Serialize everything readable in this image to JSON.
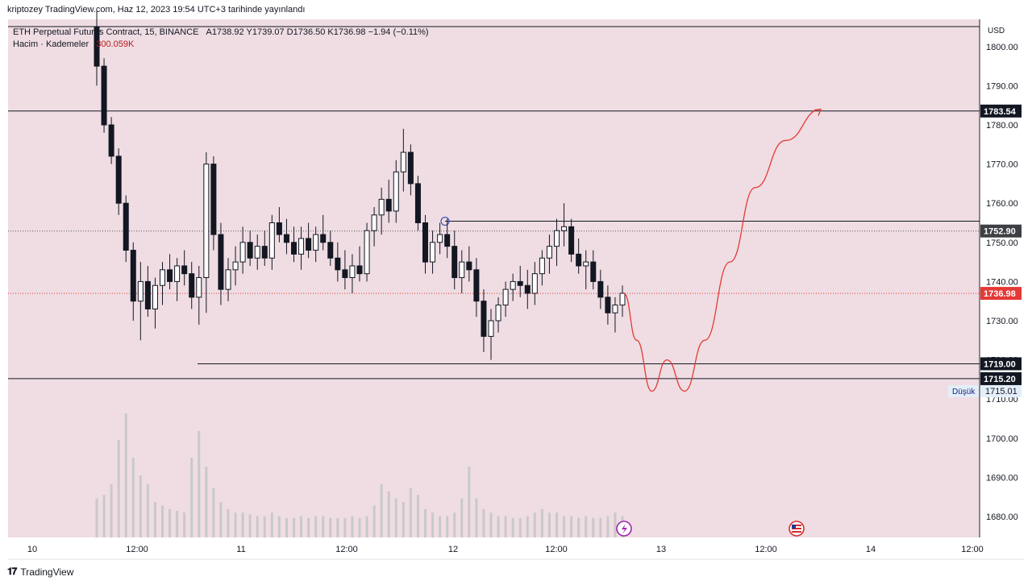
{
  "caption": "kriptozey TradingView.com, Haz 12, 2023 19:54 UTC+3 tarihinde yayınlandı",
  "brand": "TradingView",
  "legend": {
    "symbol": "ETH Perpetual Futures Contract, 15, BINANCE",
    "ohlc": "A1738.92 Y1739.07 D1736.50 K1736.98 −1.94 (−0.11%)",
    "volume_label": "Hacim · Kademeler",
    "volume_value": "300.059K"
  },
  "colors": {
    "background": "#efdde3",
    "candle": "#131722",
    "projection": "#e53935",
    "current_price": "#e53935",
    "volume": "#c9c9c9"
  },
  "chart_data": {
    "type": "candlestick",
    "currency": "USD",
    "y_ticks": [
      1680,
      1690,
      1700,
      1710,
      1720,
      1730,
      1740,
      1750,
      1760,
      1770,
      1780,
      1790,
      1800
    ],
    "x_ticks": [
      "10",
      "12:00",
      "11",
      "12:00",
      "12",
      "12:00",
      "13",
      "12:00",
      "14",
      "12:00"
    ],
    "horizontal_levels": [
      1783.54,
      1719.0,
      1715.2
    ],
    "price_labels": [
      {
        "value": 1783.54,
        "text": "1783.54",
        "style": "dark"
      },
      {
        "value": 1752.9,
        "text": "1752.90",
        "style": "gray"
      },
      {
        "value": 1736.98,
        "text": "1736.98",
        "style": "red"
      },
      {
        "value": 1719.0,
        "text": "1719.00",
        "style": "dark"
      },
      {
        "value": 1715.2,
        "text": "1715.20",
        "style": "dark"
      }
    ],
    "low_marker": {
      "label": "Düşük",
      "value": "1715.01"
    },
    "current_price": 1736.98,
    "dotted_level": 1752.9,
    "resistance_ray": 1755.4,
    "ohlc": [
      [
        1805,
        1809,
        1790,
        1795
      ],
      [
        1795,
        1797,
        1778,
        1780
      ],
      [
        1780,
        1782,
        1770,
        1772
      ],
      [
        1772,
        1774,
        1757,
        1760
      ],
      [
        1760,
        1762,
        1745,
        1748
      ],
      [
        1748,
        1750,
        1730,
        1735
      ],
      [
        1735,
        1745,
        1725,
        1740
      ],
      [
        1740,
        1744,
        1731,
        1733
      ],
      [
        1733,
        1741,
        1728,
        1739
      ],
      [
        1739,
        1745,
        1734,
        1743
      ],
      [
        1743,
        1747,
        1738,
        1740
      ],
      [
        1740,
        1746,
        1735,
        1744
      ],
      [
        1744,
        1748,
        1739,
        1742
      ],
      [
        1742,
        1745,
        1733,
        1736
      ],
      [
        1736,
        1744,
        1729,
        1741
      ],
      [
        1741,
        1773,
        1732,
        1770
      ],
      [
        1770,
        1772,
        1748,
        1752
      ],
      [
        1752,
        1755,
        1734,
        1738
      ],
      [
        1738,
        1746,
        1735,
        1743
      ],
      [
        1743,
        1749,
        1739,
        1745
      ],
      [
        1745,
        1754,
        1742,
        1750
      ],
      [
        1750,
        1753,
        1744,
        1746
      ],
      [
        1746,
        1752,
        1743,
        1749
      ],
      [
        1749,
        1753,
        1744,
        1746
      ],
      [
        1746,
        1757,
        1743,
        1755
      ],
      [
        1755,
        1759,
        1750,
        1752
      ],
      [
        1752,
        1756,
        1747,
        1750
      ],
      [
        1750,
        1754,
        1745,
        1747
      ],
      [
        1747,
        1754,
        1743,
        1751
      ],
      [
        1751,
        1755,
        1746,
        1748
      ],
      [
        1748,
        1754,
        1745,
        1752
      ],
      [
        1752,
        1757,
        1748,
        1750
      ],
      [
        1750,
        1753,
        1744,
        1746
      ],
      [
        1746,
        1750,
        1740,
        1743
      ],
      [
        1743,
        1748,
        1738,
        1741
      ],
      [
        1741,
        1747,
        1737,
        1744
      ],
      [
        1744,
        1749,
        1740,
        1742
      ],
      [
        1742,
        1755,
        1740,
        1753
      ],
      [
        1753,
        1759,
        1749,
        1757
      ],
      [
        1757,
        1764,
        1752,
        1761
      ],
      [
        1761,
        1766,
        1755,
        1758
      ],
      [
        1758,
        1771,
        1755,
        1768
      ],
      [
        1768,
        1779,
        1763,
        1773
      ],
      [
        1773,
        1775,
        1762,
        1765
      ],
      [
        1765,
        1767,
        1753,
        1755
      ],
      [
        1755,
        1757,
        1742,
        1745
      ],
      [
        1745,
        1753,
        1742,
        1750
      ],
      [
        1750,
        1755,
        1747,
        1752
      ],
      [
        1752,
        1756,
        1746,
        1749
      ],
      [
        1749,
        1753,
        1738,
        1741
      ],
      [
        1741,
        1748,
        1737,
        1745
      ],
      [
        1745,
        1749,
        1740,
        1743
      ],
      [
        1743,
        1746,
        1731,
        1735
      ],
      [
        1735,
        1738,
        1722,
        1726
      ],
      [
        1726,
        1733,
        1720,
        1730
      ],
      [
        1730,
        1736,
        1727,
        1734
      ],
      [
        1734,
        1740,
        1731,
        1738
      ],
      [
        1738,
        1742,
        1735,
        1740
      ],
      [
        1740,
        1744,
        1736,
        1739
      ],
      [
        1739,
        1743,
        1733,
        1737
      ],
      [
        1737,
        1745,
        1734,
        1742
      ],
      [
        1742,
        1748,
        1739,
        1746
      ],
      [
        1746,
        1752,
        1742,
        1749
      ],
      [
        1749,
        1756,
        1744,
        1753
      ],
      [
        1753,
        1760,
        1749,
        1754
      ],
      [
        1754,
        1756,
        1745,
        1747
      ],
      [
        1747,
        1751,
        1742,
        1744
      ],
      [
        1744,
        1748,
        1738,
        1745
      ],
      [
        1745,
        1748,
        1738,
        1740
      ],
      [
        1740,
        1743,
        1733,
        1736
      ],
      [
        1736,
        1739,
        1729,
        1732
      ],
      [
        1732,
        1736,
        1727,
        1734
      ],
      [
        1734,
        1739,
        1731,
        1737
      ]
    ],
    "volume": [
      22,
      24,
      30,
      55,
      70,
      45,
      35,
      30,
      20,
      18,
      16,
      15,
      14,
      45,
      60,
      40,
      28,
      20,
      16,
      14,
      14,
      13,
      12,
      12,
      14,
      12,
      11,
      11,
      12,
      11,
      12,
      12,
      11,
      11,
      11,
      12,
      11,
      12,
      18,
      30,
      26,
      22,
      20,
      28,
      24,
      16,
      14,
      12,
      12,
      14,
      22,
      40,
      22,
      16,
      14,
      12,
      12,
      11,
      11,
      12,
      14,
      16,
      14,
      14,
      12,
      12,
      11,
      12,
      11,
      11,
      12,
      14,
      12
    ],
    "projection_path": [
      [
        1736.98,
        0
      ],
      [
        1725,
        0.05
      ],
      [
        1712,
        0.11
      ],
      [
        1720,
        0.17
      ],
      [
        1712,
        0.24
      ],
      [
        1725,
        0.32
      ],
      [
        1745,
        0.42
      ],
      [
        1764,
        0.52
      ],
      [
        1776,
        0.64
      ],
      [
        1784,
        0.78
      ]
    ]
  }
}
